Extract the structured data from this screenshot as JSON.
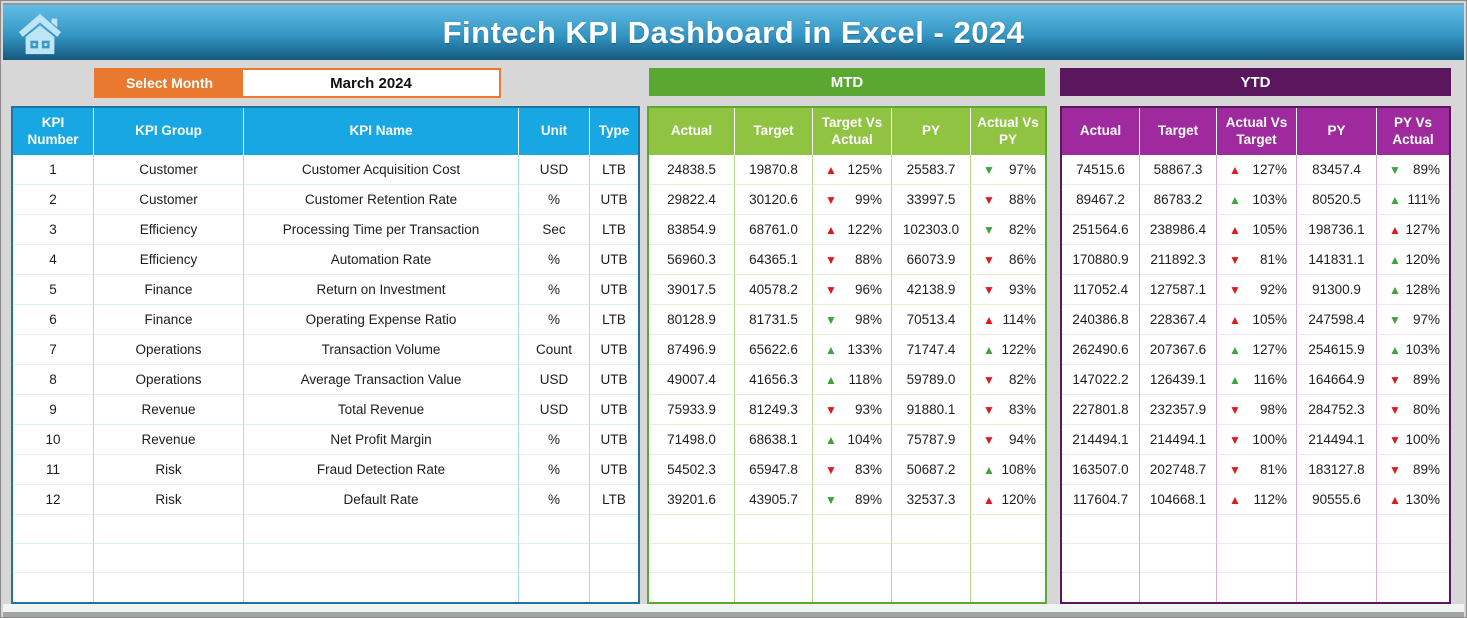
{
  "header": {
    "title": "Fintech KPI Dashboard in Excel - 2024"
  },
  "month_selector": {
    "label": "Select Month",
    "value": "March 2024"
  },
  "colors": {
    "accent_orange": "#E8792F",
    "table_header_blue": "#17A7E3",
    "mtd_banner_green": "#5AA831",
    "mtd_header_green": "#8FC341",
    "ytd_banner_purple": "#5B175E",
    "ytd_header_magenta": "#9F2A9E",
    "trend_red": "#E0191F",
    "trend_green": "#3FA23C"
  },
  "kpi_table": {
    "headers": [
      "KPI Number",
      "KPI Group",
      "KPI Name",
      "Unit",
      "Type"
    ],
    "rows": [
      {
        "number": "1",
        "group": "Customer",
        "name": "Customer Acquisition Cost",
        "unit": "USD",
        "type": "LTB"
      },
      {
        "number": "2",
        "group": "Customer",
        "name": "Customer Retention Rate",
        "unit": "%",
        "type": "UTB"
      },
      {
        "number": "3",
        "group": "Efficiency",
        "name": "Processing Time per Transaction",
        "unit": "Sec",
        "type": "LTB"
      },
      {
        "number": "4",
        "group": "Efficiency",
        "name": "Automation Rate",
        "unit": "%",
        "type": "UTB"
      },
      {
        "number": "5",
        "group": "Finance",
        "name": "Return on Investment",
        "unit": "%",
        "type": "UTB"
      },
      {
        "number": "6",
        "group": "Finance",
        "name": "Operating Expense Ratio",
        "unit": "%",
        "type": "LTB"
      },
      {
        "number": "7",
        "group": "Operations",
        "name": "Transaction Volume",
        "unit": "Count",
        "type": "UTB"
      },
      {
        "number": "8",
        "group": "Operations",
        "name": "Average Transaction Value",
        "unit": "USD",
        "type": "UTB"
      },
      {
        "number": "9",
        "group": "Revenue",
        "name": "Total Revenue",
        "unit": "USD",
        "type": "UTB"
      },
      {
        "number": "10",
        "group": "Revenue",
        "name": "Net Profit Margin",
        "unit": "%",
        "type": "UTB"
      },
      {
        "number": "11",
        "group": "Risk",
        "name": "Fraud Detection Rate",
        "unit": "%",
        "type": "UTB"
      },
      {
        "number": "12",
        "group": "Risk",
        "name": "Default Rate",
        "unit": "%",
        "type": "LTB"
      }
    ]
  },
  "mtd": {
    "title": "MTD",
    "headers": [
      "Actual",
      "Target",
      "Target Vs Actual",
      "PY",
      "Actual Vs PY"
    ],
    "rows": [
      {
        "actual": "24838.5",
        "target": "19870.8",
        "cmp1": {
          "dir": "up",
          "color": "red",
          "pct": "125%"
        },
        "py": "25583.7",
        "cmp2": {
          "dir": "down",
          "color": "green",
          "pct": "97%"
        }
      },
      {
        "actual": "29822.4",
        "target": "30120.6",
        "cmp1": {
          "dir": "down",
          "color": "red",
          "pct": "99%"
        },
        "py": "33997.5",
        "cmp2": {
          "dir": "down",
          "color": "red",
          "pct": "88%"
        }
      },
      {
        "actual": "83854.9",
        "target": "68761.0",
        "cmp1": {
          "dir": "up",
          "color": "red",
          "pct": "122%"
        },
        "py": "102303.0",
        "cmp2": {
          "dir": "down",
          "color": "green",
          "pct": "82%"
        }
      },
      {
        "actual": "56960.3",
        "target": "64365.1",
        "cmp1": {
          "dir": "down",
          "color": "red",
          "pct": "88%"
        },
        "py": "66073.9",
        "cmp2": {
          "dir": "down",
          "color": "red",
          "pct": "86%"
        }
      },
      {
        "actual": "39017.5",
        "target": "40578.2",
        "cmp1": {
          "dir": "down",
          "color": "red",
          "pct": "96%"
        },
        "py": "42138.9",
        "cmp2": {
          "dir": "down",
          "color": "red",
          "pct": "93%"
        }
      },
      {
        "actual": "80128.9",
        "target": "81731.5",
        "cmp1": {
          "dir": "down",
          "color": "green",
          "pct": "98%"
        },
        "py": "70513.4",
        "cmp2": {
          "dir": "up",
          "color": "red",
          "pct": "114%"
        }
      },
      {
        "actual": "87496.9",
        "target": "65622.6",
        "cmp1": {
          "dir": "up",
          "color": "green",
          "pct": "133%"
        },
        "py": "71747.4",
        "cmp2": {
          "dir": "up",
          "color": "green",
          "pct": "122%"
        }
      },
      {
        "actual": "49007.4",
        "target": "41656.3",
        "cmp1": {
          "dir": "up",
          "color": "green",
          "pct": "118%"
        },
        "py": "59789.0",
        "cmp2": {
          "dir": "down",
          "color": "red",
          "pct": "82%"
        }
      },
      {
        "actual": "75933.9",
        "target": "81249.3",
        "cmp1": {
          "dir": "down",
          "color": "red",
          "pct": "93%"
        },
        "py": "91880.1",
        "cmp2": {
          "dir": "down",
          "color": "red",
          "pct": "83%"
        }
      },
      {
        "actual": "71498.0",
        "target": "68638.1",
        "cmp1": {
          "dir": "up",
          "color": "green",
          "pct": "104%"
        },
        "py": "75787.9",
        "cmp2": {
          "dir": "down",
          "color": "red",
          "pct": "94%"
        }
      },
      {
        "actual": "54502.3",
        "target": "65947.8",
        "cmp1": {
          "dir": "down",
          "color": "red",
          "pct": "83%"
        },
        "py": "50687.2",
        "cmp2": {
          "dir": "up",
          "color": "green",
          "pct": "108%"
        }
      },
      {
        "actual": "39201.6",
        "target": "43905.7",
        "cmp1": {
          "dir": "down",
          "color": "green",
          "pct": "89%"
        },
        "py": "32537.3",
        "cmp2": {
          "dir": "up",
          "color": "red",
          "pct": "120%"
        }
      }
    ]
  },
  "ytd": {
    "title": "YTD",
    "headers": [
      "Actual",
      "Target",
      "Actual Vs Target",
      "PY",
      "PY Vs Actual"
    ],
    "rows": [
      {
        "actual": "74515.6",
        "target": "58867.3",
        "cmp1": {
          "dir": "up",
          "color": "red",
          "pct": "127%"
        },
        "py": "83457.4",
        "cmp2": {
          "dir": "down",
          "color": "green",
          "pct": "89%"
        }
      },
      {
        "actual": "89467.2",
        "target": "86783.2",
        "cmp1": {
          "dir": "up",
          "color": "green",
          "pct": "103%"
        },
        "py": "80520.5",
        "cmp2": {
          "dir": "up",
          "color": "green",
          "pct": "111%"
        }
      },
      {
        "actual": "251564.6",
        "target": "238986.4",
        "cmp1": {
          "dir": "up",
          "color": "red",
          "pct": "105%"
        },
        "py": "198736.1",
        "cmp2": {
          "dir": "up",
          "color": "red",
          "pct": "127%"
        }
      },
      {
        "actual": "170880.9",
        "target": "211892.3",
        "cmp1": {
          "dir": "down",
          "color": "red",
          "pct": "81%"
        },
        "py": "141831.1",
        "cmp2": {
          "dir": "up",
          "color": "green",
          "pct": "120%"
        }
      },
      {
        "actual": "117052.4",
        "target": "127587.1",
        "cmp1": {
          "dir": "down",
          "color": "red",
          "pct": "92%"
        },
        "py": "91300.9",
        "cmp2": {
          "dir": "up",
          "color": "green",
          "pct": "128%"
        }
      },
      {
        "actual": "240386.8",
        "target": "228367.4",
        "cmp1": {
          "dir": "up",
          "color": "red",
          "pct": "105%"
        },
        "py": "247598.4",
        "cmp2": {
          "dir": "down",
          "color": "green",
          "pct": "97%"
        }
      },
      {
        "actual": "262490.6",
        "target": "207367.6",
        "cmp1": {
          "dir": "up",
          "color": "green",
          "pct": "127%"
        },
        "py": "254615.9",
        "cmp2": {
          "dir": "up",
          "color": "green",
          "pct": "103%"
        }
      },
      {
        "actual": "147022.2",
        "target": "126439.1",
        "cmp1": {
          "dir": "up",
          "color": "green",
          "pct": "116%"
        },
        "py": "164664.9",
        "cmp2": {
          "dir": "down",
          "color": "red",
          "pct": "89%"
        }
      },
      {
        "actual": "227801.8",
        "target": "232357.9",
        "cmp1": {
          "dir": "down",
          "color": "red",
          "pct": "98%"
        },
        "py": "284752.3",
        "cmp2": {
          "dir": "down",
          "color": "red",
          "pct": "80%"
        }
      },
      {
        "actual": "214494.1",
        "target": "214494.1",
        "cmp1": {
          "dir": "down",
          "color": "red",
          "pct": "100%"
        },
        "py": "214494.1",
        "cmp2": {
          "dir": "down",
          "color": "red",
          "pct": "100%"
        }
      },
      {
        "actual": "163507.0",
        "target": "202748.7",
        "cmp1": {
          "dir": "down",
          "color": "red",
          "pct": "81%"
        },
        "py": "183127.8",
        "cmp2": {
          "dir": "down",
          "color": "red",
          "pct": "89%"
        }
      },
      {
        "actual": "117604.7",
        "target": "104668.1",
        "cmp1": {
          "dir": "up",
          "color": "red",
          "pct": "112%"
        },
        "py": "90555.6",
        "cmp2": {
          "dir": "up",
          "color": "red",
          "pct": "130%"
        }
      }
    ]
  },
  "empty_rows": 3
}
